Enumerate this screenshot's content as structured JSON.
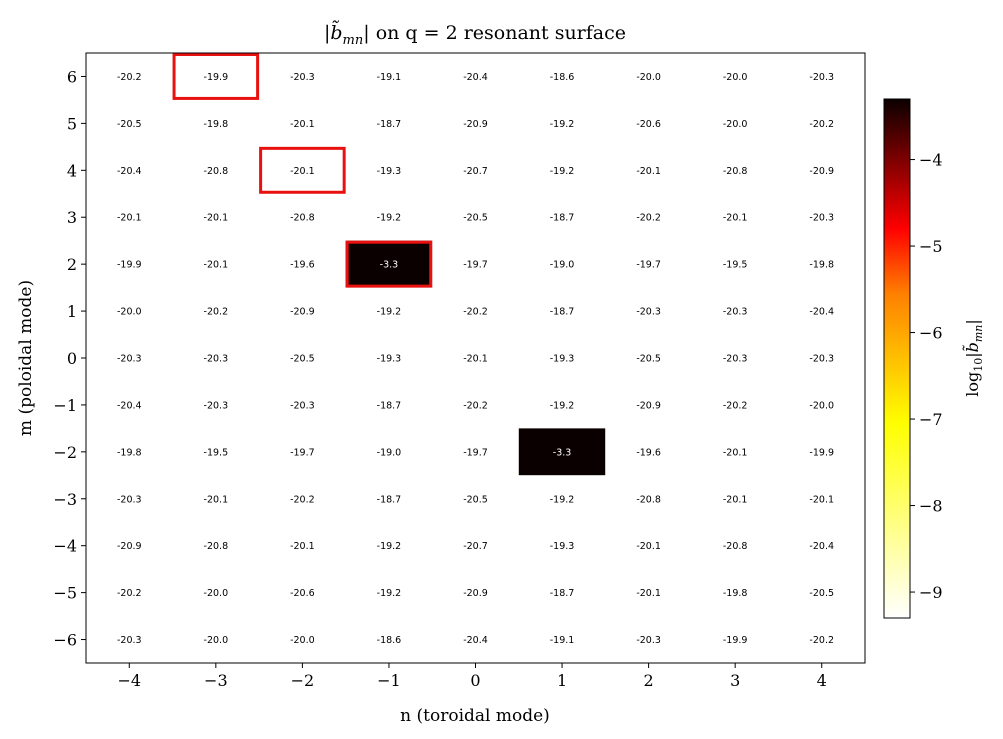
{
  "chart_data": {
    "type": "heatmap",
    "title_prefix": "|b̃",
    "title_sub": "mn",
    "title_suffix": "| on q = 2 resonant surface",
    "xlabel": "n  (toroidal mode)",
    "ylabel": "m  (poloidal mode)",
    "colorbar_label_prefix": "log",
    "colorbar_label_sub1": "10",
    "colorbar_label_mid": "|b̃",
    "colorbar_label_sub2": "mn",
    "colorbar_label_suffix": "|",
    "colormap": "hot_r",
    "vmin": -9.3,
    "vmax": -3.3,
    "colorbar_ticks": [
      -4,
      -5,
      -6,
      -7,
      -8,
      -9
    ],
    "colorbar_tick_labels": [
      "−4",
      "−5",
      "−6",
      "−7",
      "−8",
      "−9"
    ],
    "x": [
      -4,
      -3,
      -2,
      -1,
      0,
      1,
      2,
      3,
      4
    ],
    "y": [
      6,
      5,
      4,
      3,
      2,
      1,
      0,
      -1,
      -2,
      -3,
      -4,
      -5,
      -6
    ],
    "x_tick_labels": [
      "−4",
      "−3",
      "−2",
      "−1",
      "0",
      "1",
      "2",
      "3",
      "4"
    ],
    "y_tick_labels": [
      "6",
      "5",
      "4",
      "3",
      "2",
      "1",
      "0",
      "−1",
      "−2",
      "−3",
      "−4",
      "−5",
      "−6"
    ],
    "xlim": [
      -4.5,
      4.5
    ],
    "ylim": [
      -6.5,
      6.5
    ],
    "values": [
      [
        -20.2,
        -19.9,
        -20.3,
        -19.1,
        -20.4,
        -18.6,
        -20.0,
        -20.0,
        -20.3
      ],
      [
        -20.5,
        -19.8,
        -20.1,
        -18.7,
        -20.9,
        -19.2,
        -20.6,
        -20.0,
        -20.2
      ],
      [
        -20.4,
        -20.8,
        -20.1,
        -19.3,
        -20.7,
        -19.2,
        -20.1,
        -20.8,
        -20.9
      ],
      [
        -20.1,
        -20.1,
        -20.8,
        -19.2,
        -20.5,
        -18.7,
        -20.2,
        -20.1,
        -20.3
      ],
      [
        -19.9,
        -20.1,
        -19.6,
        -3.3,
        -19.7,
        -19.0,
        -19.7,
        -19.5,
        -19.8
      ],
      [
        -20.0,
        -20.2,
        -20.9,
        -19.2,
        -20.2,
        -18.7,
        -20.3,
        -20.3,
        -20.4
      ],
      [
        -20.3,
        -20.3,
        -20.5,
        -19.3,
        -20.1,
        -19.3,
        -20.5,
        -20.3,
        -20.3
      ],
      [
        -20.4,
        -20.3,
        -20.3,
        -18.7,
        -20.2,
        -19.2,
        -20.9,
        -20.2,
        -20.0
      ],
      [
        -19.8,
        -19.5,
        -19.7,
        -19.0,
        -19.7,
        -3.3,
        -19.6,
        -20.1,
        -19.9
      ],
      [
        -20.3,
        -20.1,
        -20.2,
        -18.7,
        -20.5,
        -19.2,
        -20.8,
        -20.1,
        -20.1
      ],
      [
        -20.9,
        -20.8,
        -20.1,
        -19.2,
        -20.7,
        -19.3,
        -20.1,
        -20.8,
        -20.4
      ],
      [
        -20.2,
        -20.0,
        -20.6,
        -19.2,
        -20.9,
        -18.7,
        -20.1,
        -19.8,
        -20.5
      ],
      [
        -20.3,
        -20.0,
        -20.0,
        -18.6,
        -20.4,
        -19.1,
        -20.3,
        -19.9,
        -20.2
      ]
    ],
    "highlighted_cells": [
      {
        "n": -3,
        "m": 6
      },
      {
        "n": -2,
        "m": 4
      },
      {
        "n": -1,
        "m": 2
      }
    ],
    "highlight_color": "#e8110f",
    "grid": false
  }
}
